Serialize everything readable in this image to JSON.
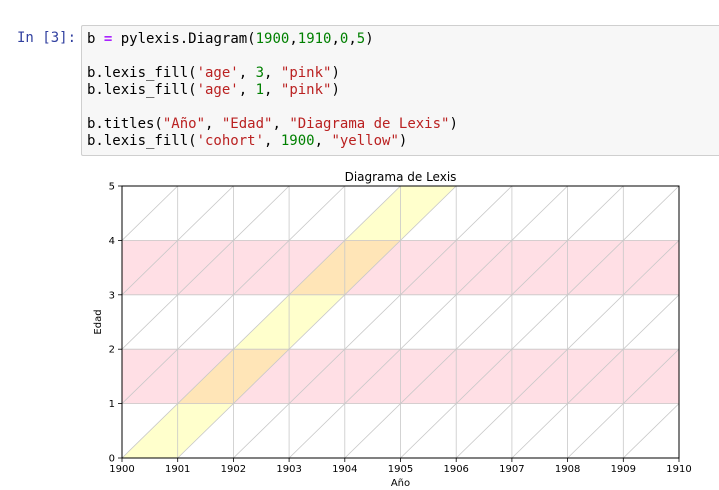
{
  "cell": {
    "prompt": "In [3]:",
    "code": {
      "line1": {
        "var": "b",
        "op": "=",
        "call": "pylexis.Diagram(",
        "a1": "1900",
        "a2": "1910",
        "a3": "0",
        "a4": "5",
        "close": ")"
      },
      "line2": {
        "call": "b.lexis_fill(",
        "arg1": "'age'",
        "arg2": "3",
        "arg3": "\"pink\"",
        "close": ")"
      },
      "line3": {
        "call": "b.lexis_fill(",
        "arg1": "'age'",
        "arg2": "1",
        "arg3": "\"pink\"",
        "close": ")"
      },
      "line4": {
        "call": "b.titles(",
        "arg1": "\"Año\"",
        "arg2": "\"Edad\"",
        "arg3": "\"Diagrama de Lexis\"",
        "close": ")"
      },
      "line5": {
        "call": "b.lexis_fill(",
        "arg1": "'cohort'",
        "arg2": "1900",
        "arg3": "\"yellow\"",
        "close": ")"
      }
    }
  },
  "chart_data": {
    "type": "area",
    "title": "Diagrama de Lexis",
    "xlabel": "Año",
    "ylabel": "Edad",
    "xlim": [
      1900,
      1910
    ],
    "ylim": [
      0,
      5
    ],
    "x_ticks": [
      "1900",
      "1901",
      "1902",
      "1903",
      "1904",
      "1905",
      "1906",
      "1907",
      "1908",
      "1909",
      "1910"
    ],
    "y_ticks": [
      "0",
      "1",
      "2",
      "3",
      "4",
      "5"
    ],
    "grid": true,
    "age_bands": [
      {
        "age_from": 1,
        "age_to": 2,
        "color": "pink"
      },
      {
        "age_from": 3,
        "age_to": 4,
        "color": "pink"
      }
    ],
    "cohort_bands": [
      {
        "cohort_start": 1900,
        "cohort_end": 1901,
        "color": "yellow"
      }
    ],
    "colors": {
      "pink": "#ffc0cb",
      "yellow": "#ffff00",
      "grid": "#c8c8c8",
      "axes": "#000000"
    }
  }
}
